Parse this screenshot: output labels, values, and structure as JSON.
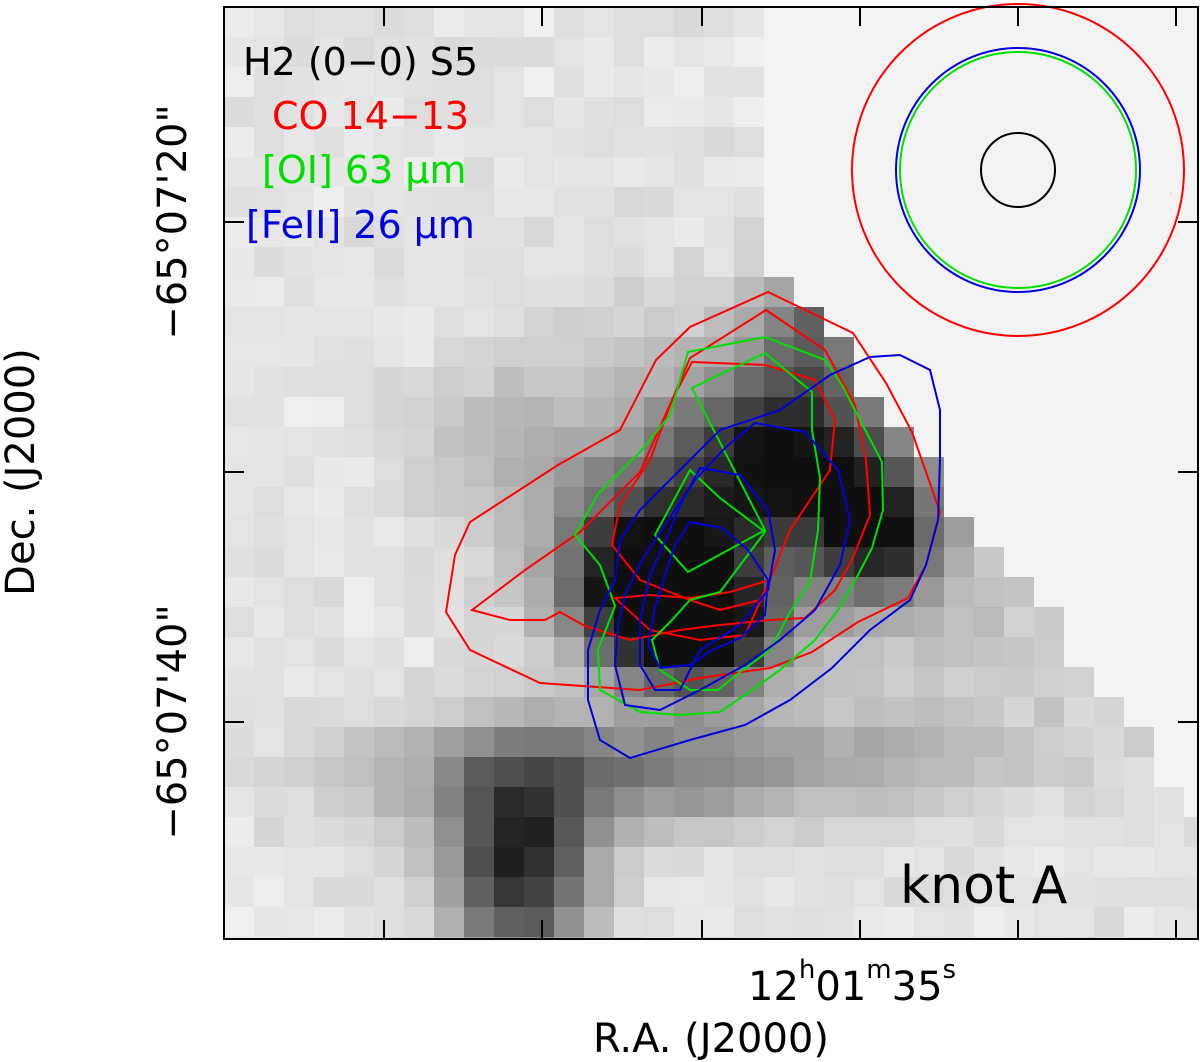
{
  "chart_data": {
    "type": "heatmap",
    "background": {
      "name": "H2 (0-0) S5",
      "colormap": "grayscale (white = low, black = high)",
      "description_note": ""
    },
    "xlabel": "R.A. (J2000)",
    "ylabel": "Dec. (J2000)",
    "x_tick_label": {
      "h": "12",
      "h_unit": "h",
      "m": "01",
      "m_unit": "m",
      "s": "35",
      "s_unit": "s"
    },
    "y_tick_labels": [
      "−65°07'20\"",
      "−65°07'40\""
    ],
    "annotation": "knot A",
    "legend_position": "top-left",
    "legend": [
      {
        "label": "H2 (0−0) S5",
        "color": "#000000"
      },
      {
        "label": "CO 14−13",
        "color": "#ff0000"
      },
      {
        "label": "[OI] 63 μm",
        "color": "#00e000"
      },
      {
        "label": "[FeII] 26 μm",
        "color": "#0000dd"
      }
    ],
    "beams": [
      {
        "series": "H2 (0-0) S5",
        "color": "#000000",
        "diameter_arcsec": 6
      },
      {
        "series": "[OI] 63 μm",
        "color": "#00e000",
        "diameter_arcsec": 19
      },
      {
        "series": "[FeII] 26 μm",
        "color": "#0000dd",
        "diameter_arcsec": 20
      },
      {
        "series": "CO 14−13",
        "color": "#ff0000",
        "diameter_arcsec": 27
      }
    ],
    "contour_series": [
      {
        "name": "CO 14−13",
        "color": "#ff0000",
        "levels": 3
      },
      {
        "name": "[OI] 63 μm",
        "color": "#00e000",
        "levels": 2
      },
      {
        "name": "[FeII] 26 μm",
        "color": "#0000dd",
        "levels": 3
      }
    ]
  }
}
